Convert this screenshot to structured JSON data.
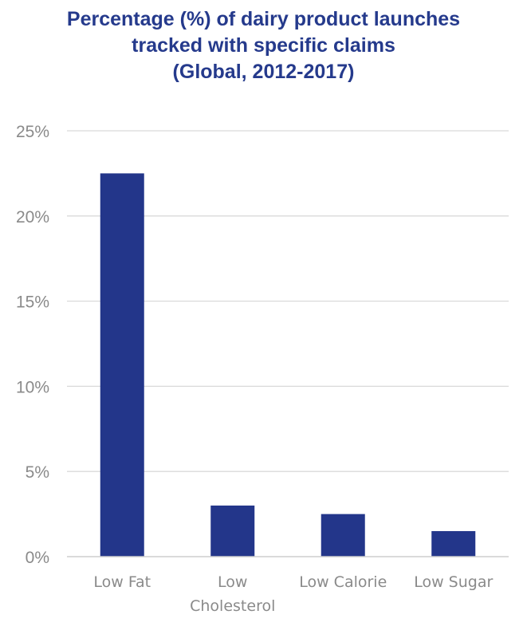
{
  "chart_data": {
    "type": "bar",
    "title_lines": [
      "Percentage (%) of dairy product launches",
      "tracked with specific claims",
      "(Global, 2012-2017)"
    ],
    "categories": [
      [
        "Low Fat"
      ],
      [
        "Low",
        "Cholesterol"
      ],
      [
        "Low Calorie"
      ],
      [
        "Low Sugar"
      ]
    ],
    "values": [
      22.5,
      3.0,
      2.5,
      1.5
    ],
    "yticks": [
      "0%",
      "5%",
      "10%",
      "15%",
      "20%",
      "25%"
    ],
    "ylim": [
      0,
      25
    ],
    "grid": true,
    "bar_color": "#23368A",
    "grid_color": "#d9d9d9",
    "title_color": "#253A8C"
  }
}
